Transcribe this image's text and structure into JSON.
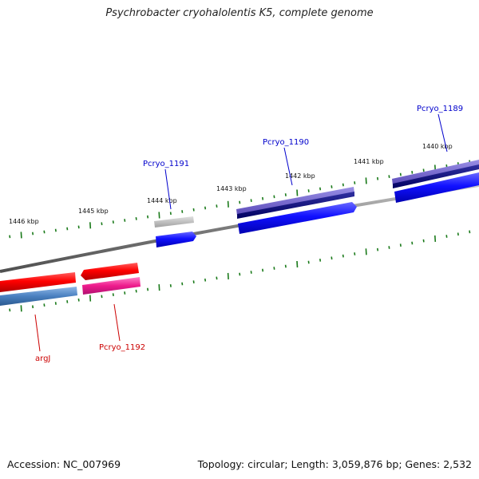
{
  "title": "Psychrobacter cryohalolentis K5, complete genome",
  "accession": "Accession: NC_007969",
  "summary": "Topology: circular; Length: 3,059,876 bp; Genes: 2,532",
  "tick_labels": [
    "1446 kbp",
    "1445 kbp",
    "1444 kbp",
    "1443 kbp",
    "1442 kbp",
    "1441 kbp",
    "1440 kbp"
  ],
  "gene_labels": {
    "forward": [
      "Pcryo_1191",
      "Pcryo_1190",
      "Pcryo_1189"
    ],
    "reverse": [
      "argJ",
      "Pcryo_1192"
    ]
  },
  "colors": {
    "forward_label": "#0000cc",
    "reverse_label": "#cc0000",
    "tick": "#1a7a1a",
    "backbone": "#808080",
    "cds_forward": "#0000ee",
    "cds_reverse": "#ee0000",
    "gene_forward": "#6a5acd",
    "gene_reverse": "#ee1c8c",
    "gene_reverse_alt": "#4a80c0",
    "gene_forward_alt": "#b0b0b0"
  }
}
